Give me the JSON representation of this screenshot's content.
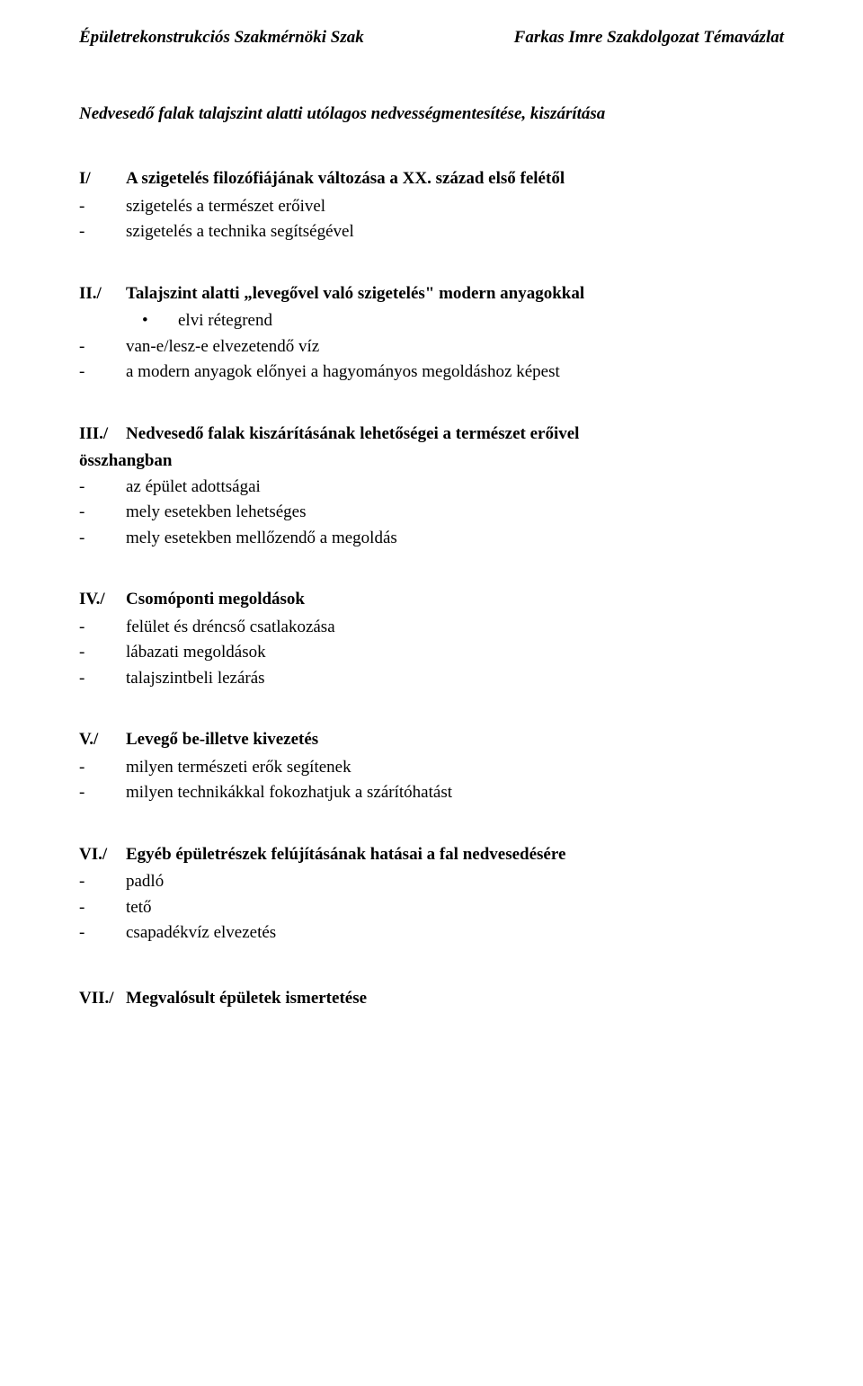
{
  "header": {
    "left": "Épületrekonstrukciós Szakmérnöki Szak",
    "right": "Farkas Imre Szakdolgozat Témavázlat"
  },
  "title": "Nedvesedő falak talajszint alatti utólagos nedvességmentesítése, kiszárítása",
  "sections": {
    "s1": {
      "num": "I/",
      "title": "A szigetelés filozófiájának változása a XX. század első felétől",
      "items": [
        "szigetelés a természet erőivel",
        "szigetelés a technika segítségével"
      ]
    },
    "s2": {
      "num": "II./",
      "title": "Talajszint alatti „levegővel való szigetelés\" modern anyagokkal",
      "bullets": [
        "elvi rétegrend"
      ],
      "items": [
        "van-e/lesz-e elvezetendő víz",
        "a modern anyagok előnyei a hagyományos megoldáshoz képest"
      ]
    },
    "s3": {
      "num": "III./",
      "title": "Nedvesedő falak kiszárításának lehetőségei a természet erőivel",
      "subhead": "összhangban",
      "items": [
        "az épület adottságai",
        "mely esetekben lehetséges",
        "mely esetekben mellőzendő a megoldás"
      ]
    },
    "s4": {
      "num": "IV./",
      "title": "Csomóponti megoldások",
      "items": [
        "felület és dréncső csatlakozása",
        "lábazati megoldások",
        "talajszintbeli lezárás"
      ]
    },
    "s5": {
      "num": "V./",
      "title": "Levegő be-illetve kivezetés",
      "items": [
        "milyen természeti erők segítenek",
        "milyen technikákkal fokozhatjuk a szárítóhatást"
      ]
    },
    "s6": {
      "num": "VI./",
      "title": "Egyéb épületrészek felújításának hatásai a fal nedvesedésére",
      "items": [
        "padló",
        "tető",
        "csapadékvíz elvezetés"
      ]
    },
    "s7": {
      "num": "VII./",
      "title": "Megvalósult épületek ismertetése"
    }
  },
  "glyphs": {
    "dash": "-",
    "bullet": "•"
  }
}
